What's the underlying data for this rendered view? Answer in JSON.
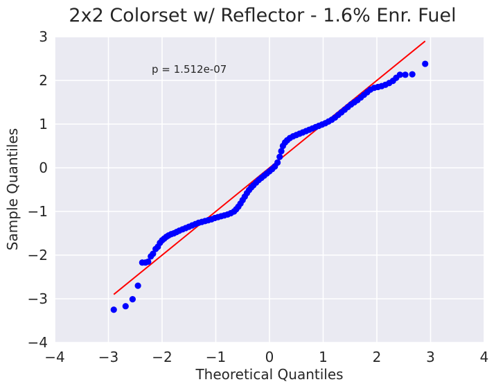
{
  "chart_data": {
    "type": "scatter",
    "title": "2x2 Colorset w/ Reflector - 1.6% Enr. Fuel",
    "xlabel": "Theoretical Quantiles",
    "ylabel": "Sample Quantiles",
    "xlim": [
      -4,
      4
    ],
    "ylim": [
      -4,
      3
    ],
    "x_ticks": [
      "−4",
      "−3",
      "−2",
      "−1",
      "0",
      "1",
      "2",
      "3",
      "4"
    ],
    "y_ticks": [
      "−4",
      "−3",
      "−2",
      "−1",
      "0",
      "1",
      "2",
      "3"
    ],
    "grid": true,
    "annotation": "p = 1.512e-07",
    "reference_line": {
      "x": [
        -2.9,
        2.9
      ],
      "y": [
        -2.9,
        2.9
      ],
      "color": "#ff0000"
    },
    "series": [
      {
        "color": "#0000ff",
        "points": [
          [
            -2.9,
            -3.25
          ],
          [
            -2.68,
            -3.17
          ],
          [
            -2.55,
            -3.01
          ],
          [
            -2.45,
            -2.7
          ],
          [
            -2.37,
            -2.17
          ],
          [
            -2.31,
            -2.17
          ],
          [
            -2.26,
            -2.15
          ],
          [
            -2.21,
            -2.03
          ],
          [
            -2.17,
            -1.97
          ],
          [
            -2.12,
            -1.86
          ],
          [
            -2.08,
            -1.81
          ],
          [
            -2.04,
            -1.72
          ],
          [
            -2.0,
            -1.66
          ],
          [
            -1.96,
            -1.62
          ],
          [
            -1.92,
            -1.58
          ],
          [
            -1.88,
            -1.55
          ],
          [
            -1.83,
            -1.52
          ],
          [
            -1.78,
            -1.5
          ],
          [
            -1.73,
            -1.47
          ],
          [
            -1.68,
            -1.44
          ],
          [
            -1.62,
            -1.41
          ],
          [
            -1.56,
            -1.38
          ],
          [
            -1.5,
            -1.35
          ],
          [
            -1.44,
            -1.32
          ],
          [
            -1.38,
            -1.29
          ],
          [
            -1.32,
            -1.26
          ],
          [
            -1.26,
            -1.24
          ],
          [
            -1.2,
            -1.22
          ],
          [
            -1.14,
            -1.2
          ],
          [
            -1.08,
            -1.18
          ],
          [
            -1.02,
            -1.15
          ],
          [
            -0.96,
            -1.13
          ],
          [
            -0.9,
            -1.11
          ],
          [
            -0.84,
            -1.09
          ],
          [
            -0.78,
            -1.07
          ],
          [
            -0.72,
            -1.04
          ],
          [
            -0.66,
            -1.0
          ],
          [
            -0.62,
            -0.95
          ],
          [
            -0.58,
            -0.89
          ],
          [
            -0.54,
            -0.82
          ],
          [
            -0.5,
            -0.74
          ],
          [
            -0.46,
            -0.66
          ],
          [
            -0.42,
            -0.58
          ],
          [
            -0.38,
            -0.51
          ],
          [
            -0.34,
            -0.45
          ],
          [
            -0.3,
            -0.4
          ],
          [
            -0.25,
            -0.34
          ],
          [
            -0.2,
            -0.28
          ],
          [
            -0.15,
            -0.23
          ],
          [
            -0.1,
            -0.18
          ],
          [
            -0.05,
            -0.13
          ],
          [
            0.0,
            -0.08
          ],
          [
            0.05,
            -0.03
          ],
          [
            0.1,
            0.03
          ],
          [
            0.15,
            0.12
          ],
          [
            0.19,
            0.25
          ],
          [
            0.22,
            0.38
          ],
          [
            0.25,
            0.5
          ],
          [
            0.29,
            0.58
          ],
          [
            0.33,
            0.63
          ],
          [
            0.38,
            0.68
          ],
          [
            0.44,
            0.72
          ],
          [
            0.5,
            0.75
          ],
          [
            0.56,
            0.78
          ],
          [
            0.62,
            0.81
          ],
          [
            0.68,
            0.84
          ],
          [
            0.74,
            0.87
          ],
          [
            0.8,
            0.9
          ],
          [
            0.86,
            0.93
          ],
          [
            0.92,
            0.96
          ],
          [
            0.98,
            0.99
          ],
          [
            1.04,
            1.02
          ],
          [
            1.1,
            1.06
          ],
          [
            1.16,
            1.1
          ],
          [
            1.22,
            1.15
          ],
          [
            1.28,
            1.21
          ],
          [
            1.34,
            1.27
          ],
          [
            1.4,
            1.33
          ],
          [
            1.46,
            1.39
          ],
          [
            1.52,
            1.45
          ],
          [
            1.58,
            1.5
          ],
          [
            1.64,
            1.55
          ],
          [
            1.7,
            1.61
          ],
          [
            1.76,
            1.67
          ],
          [
            1.82,
            1.73
          ],
          [
            1.88,
            1.79
          ],
          [
            1.95,
            1.83
          ],
          [
            2.02,
            1.85
          ],
          [
            2.09,
            1.87
          ],
          [
            2.16,
            1.9
          ],
          [
            2.23,
            1.94
          ],
          [
            2.3,
            1.99
          ],
          [
            2.36,
            2.06
          ],
          [
            2.43,
            2.13
          ],
          [
            2.53,
            2.13
          ],
          [
            2.66,
            2.14
          ],
          [
            2.9,
            2.38
          ]
        ]
      }
    ]
  }
}
